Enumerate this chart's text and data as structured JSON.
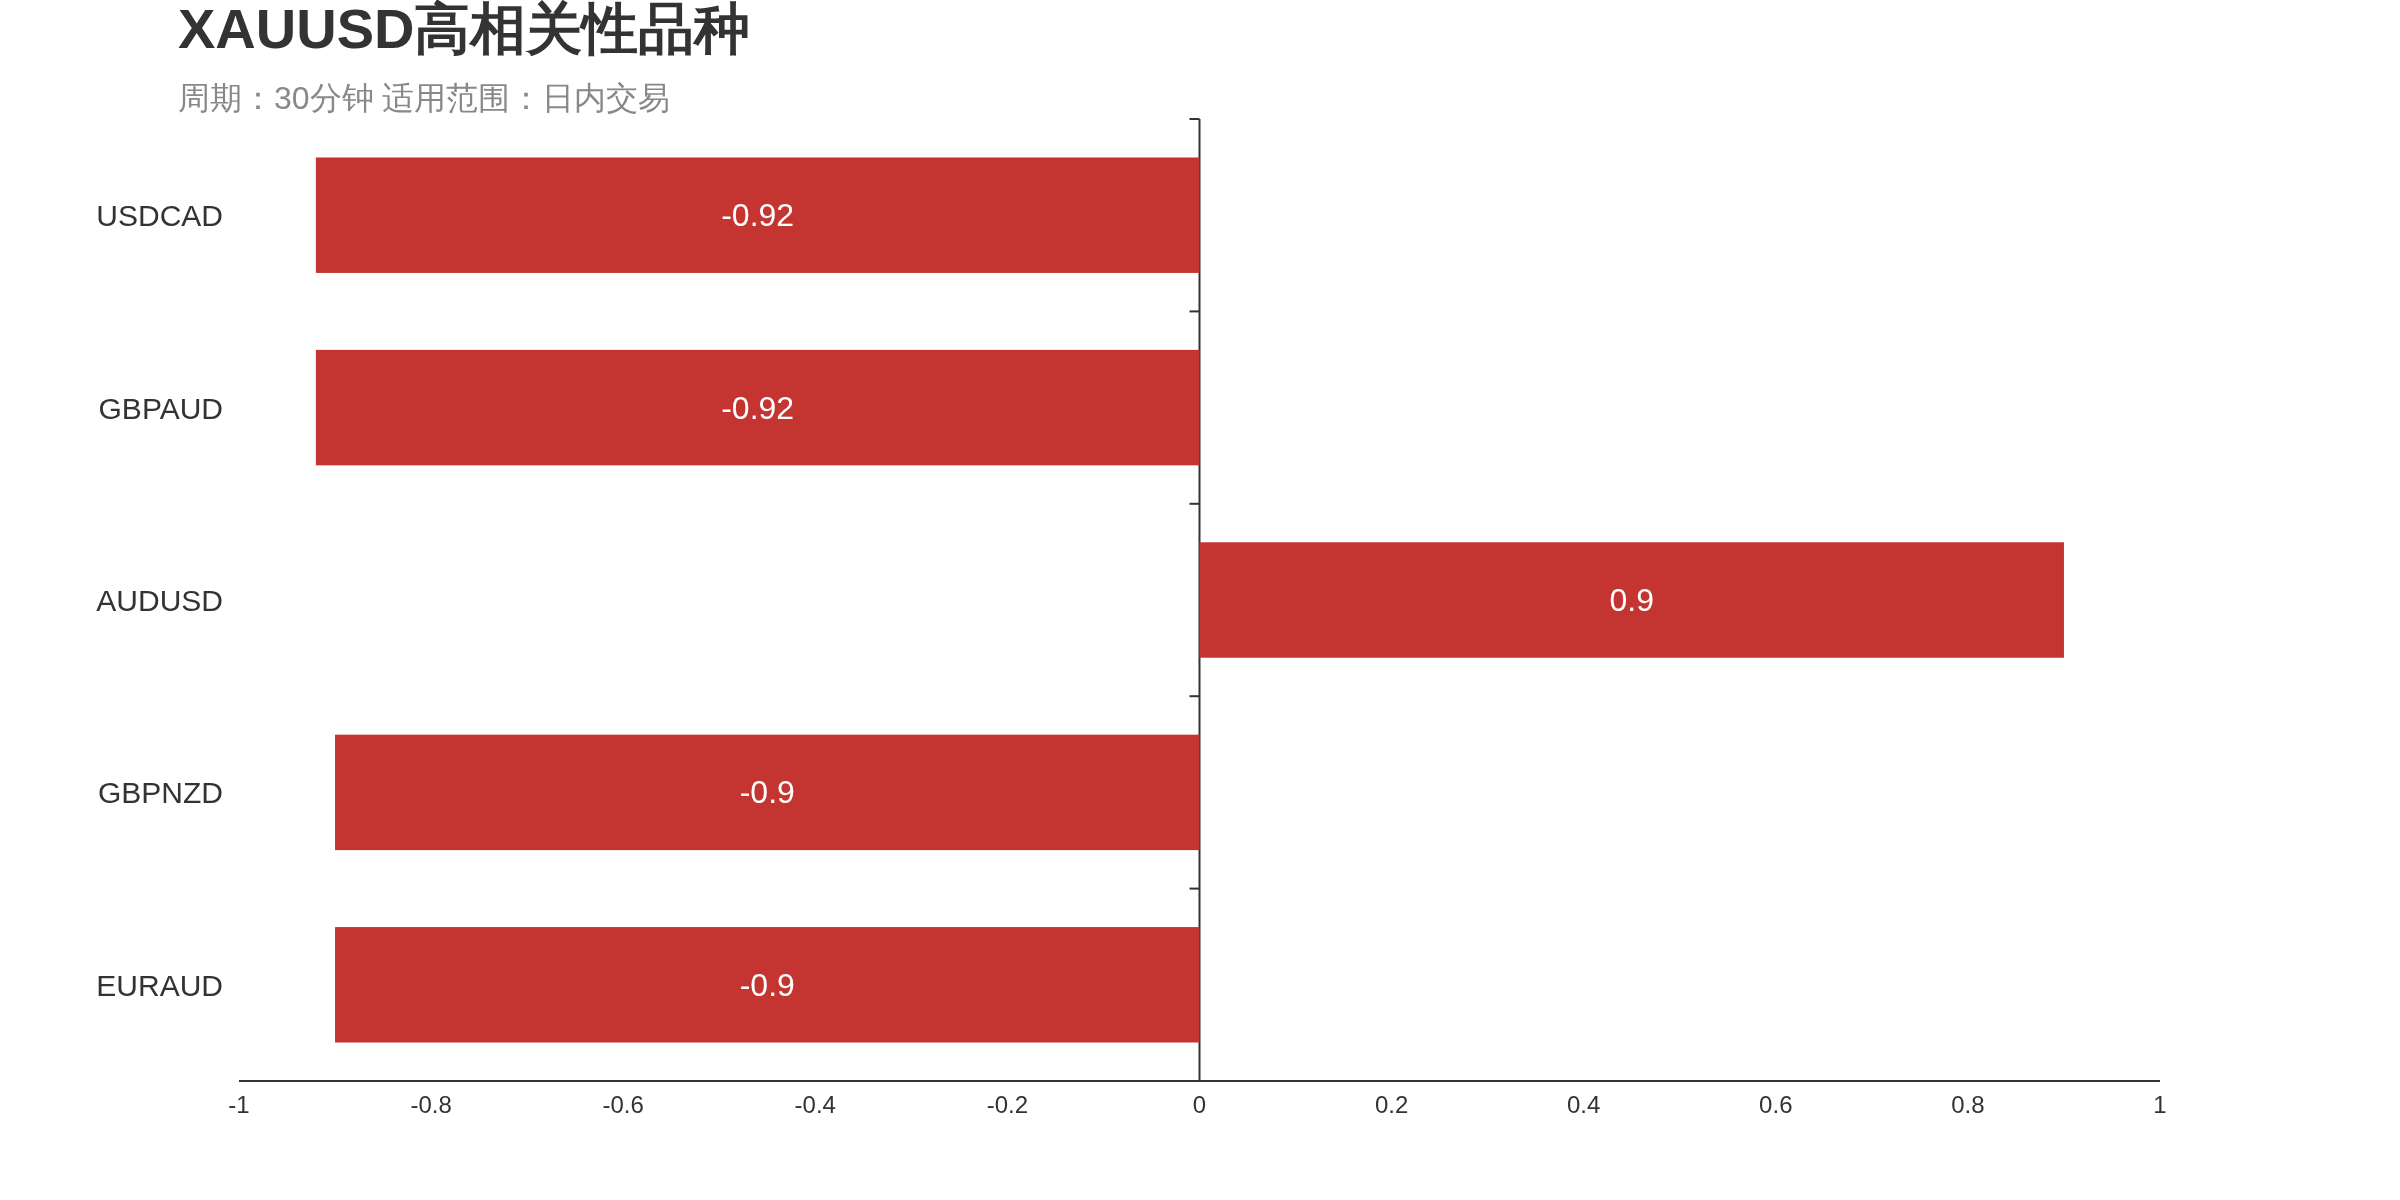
{
  "chart_data": {
    "type": "bar",
    "orientation": "horizontal",
    "title": "XAUUSD高相关性品种",
    "subtitle": "周期：30分钟 适用范围：日内交易",
    "categories": [
      "USDCAD",
      "GBPAUD",
      "AUDUSD",
      "GBPNZD",
      "EURAUD"
    ],
    "values": [
      -0.92,
      -0.92,
      0.9,
      -0.9,
      -0.9
    ],
    "color": "#c43532",
    "data_labels": true,
    "xlim": [
      -1,
      1
    ],
    "xticks": [
      -1,
      -0.8,
      -0.6,
      -0.4,
      -0.2,
      0,
      0.2,
      0.4,
      0.6,
      0.8,
      1
    ]
  }
}
